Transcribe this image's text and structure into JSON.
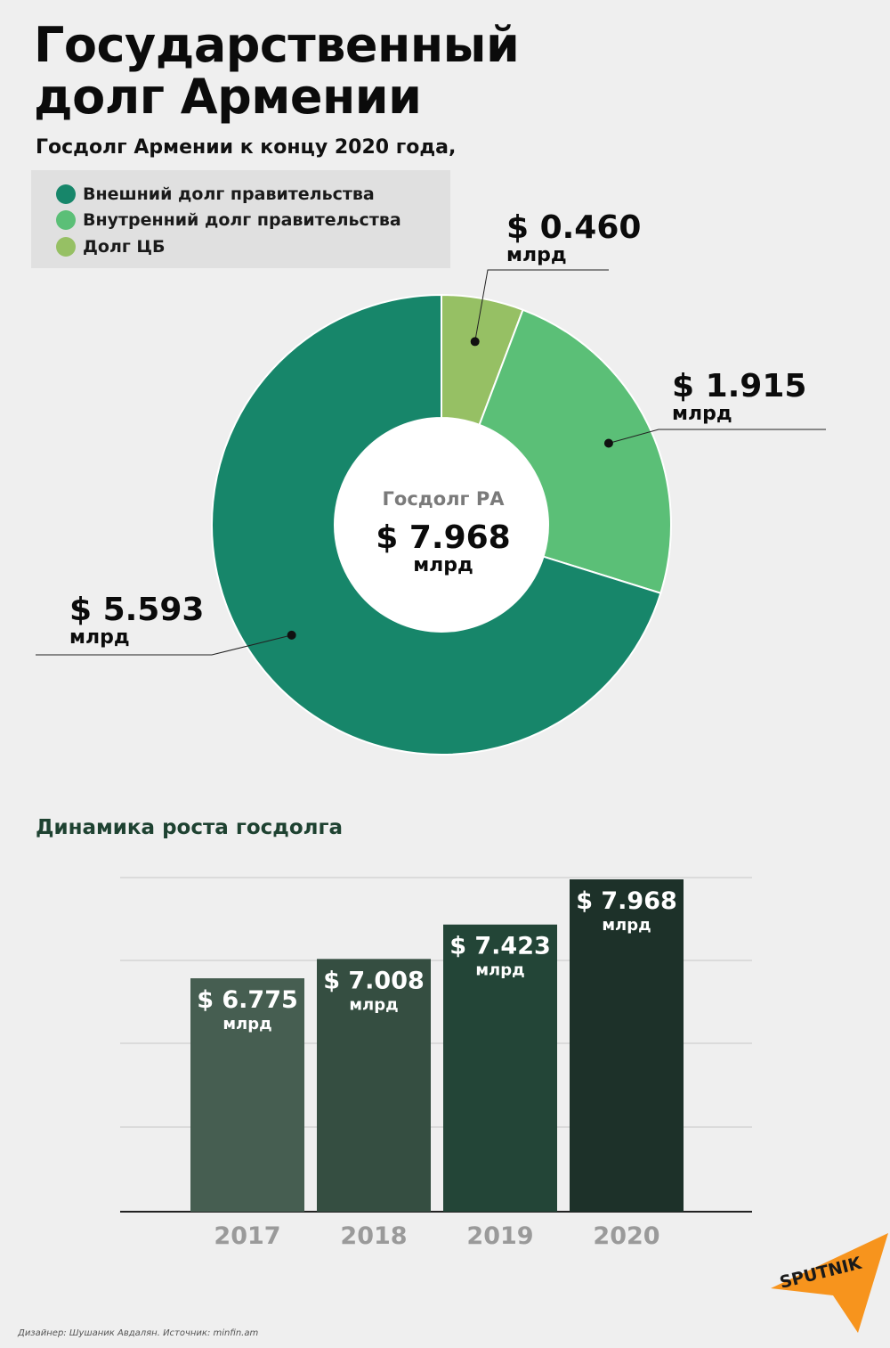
{
  "title_line1": "Государственный",
  "title_line2": "долг Армении",
  "subtitle": "Госдолг Армении к концу 2020 года,",
  "legend": [
    {
      "label": "Внешний долг правительства",
      "color": "#17866a"
    },
    {
      "label": "Внутренний долг правительства",
      "color": "#5bbf77"
    },
    {
      "label": "Долг ЦБ",
      "color": "#96c064"
    }
  ],
  "donut_center": {
    "label": "Госдолг РА",
    "value": "$ 7.968",
    "unit": "млрд"
  },
  "callouts": {
    "cb": {
      "value": "$ 0.460",
      "unit": "млрд"
    },
    "internal": {
      "value": "$ 1.915",
      "unit": "млрд"
    },
    "external": {
      "value": "$ 5.593",
      "unit": "млрд"
    }
  },
  "bar_section_title": "Динамика роста госдолга",
  "footer": "Дизайнер: Шушаник Авдалян. Источник: minfin.am",
  "logo_text": "SPUTNIK",
  "chart_data": [
    {
      "type": "pie",
      "title": "Госдолг Армении к концу 2020 года,",
      "categories": [
        "Долг ЦБ",
        "Внутренний долг правительства",
        "Внешний долг правительства"
      ],
      "values": [
        0.46,
        1.915,
        5.593
      ],
      "colors": [
        "#96c064",
        "#5bbf77",
        "#17866a"
      ],
      "total": 7.968,
      "unit": "млрд"
    },
    {
      "type": "bar",
      "title": "Динамика роста госдолга",
      "categories": [
        "2017",
        "2018",
        "2019",
        "2020"
      ],
      "values": [
        6.775,
        7.008,
        7.423,
        7.968
      ],
      "labels": [
        "$ 6.775",
        "$ 7.008",
        "$ 7.423",
        "$ 7.968"
      ],
      "unit": "млрд",
      "colors": [
        "#465e51",
        "#354e41",
        "#234537",
        "#1d3129"
      ],
      "grid": true
    }
  ]
}
